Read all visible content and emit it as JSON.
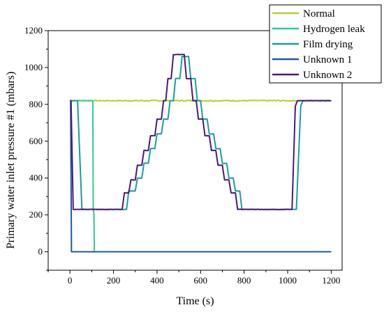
{
  "chart_data": {
    "type": "line",
    "xlabel": "Time (s)",
    "ylabel": "Primary water inlet pressure #1 (mbars)",
    "xlim": [
      -100,
      1250
    ],
    "ylim": [
      -100,
      1200
    ],
    "xticks": [
      0,
      200,
      400,
      600,
      800,
      1000,
      1200
    ],
    "yticks": [
      0,
      200,
      400,
      600,
      800,
      1000,
      1200
    ],
    "xtick_labels": [
      "0",
      "200",
      "400",
      "600",
      "800",
      "1000",
      "1200"
    ],
    "ytick_labels": [
      "0",
      "200",
      "400",
      "600",
      "800",
      "1000",
      "1200"
    ],
    "grid": false,
    "legend_position": "top-right",
    "series": [
      {
        "name": "Normal",
        "color": "#b5d22b",
        "points": [
          [
            0,
            820
          ],
          [
            1200,
            820
          ]
        ],
        "noise": 3
      },
      {
        "name": "Hydrogen leak",
        "color": "#2ecc8e",
        "points": [
          [
            0,
            820
          ],
          [
            105,
            820
          ],
          [
            107,
            230
          ],
          [
            110,
            210
          ],
          [
            112,
            0
          ],
          [
            1200,
            0
          ]
        ],
        "noise": 0
      },
      {
        "name": "Film drying",
        "color": "#1a9e9e",
        "points": [
          [
            0,
            820
          ],
          [
            35,
            820
          ],
          [
            55,
            230
          ],
          [
            260,
            230
          ],
          [
            270,
            330
          ],
          [
            300,
            330
          ],
          [
            310,
            400
          ],
          [
            330,
            400
          ],
          [
            340,
            480
          ],
          [
            360,
            480
          ],
          [
            370,
            560
          ],
          [
            390,
            560
          ],
          [
            400,
            640
          ],
          [
            420,
            640
          ],
          [
            430,
            720
          ],
          [
            450,
            720
          ],
          [
            460,
            820
          ],
          [
            475,
            820
          ],
          [
            485,
            940
          ],
          [
            505,
            940
          ],
          [
            515,
            1060
          ],
          [
            545,
            1060
          ],
          [
            555,
            940
          ],
          [
            575,
            940
          ],
          [
            585,
            820
          ],
          [
            600,
            820
          ],
          [
            610,
            720
          ],
          [
            630,
            720
          ],
          [
            640,
            640
          ],
          [
            660,
            640
          ],
          [
            670,
            560
          ],
          [
            690,
            560
          ],
          [
            700,
            480
          ],
          [
            720,
            480
          ],
          [
            730,
            400
          ],
          [
            750,
            400
          ],
          [
            760,
            330
          ],
          [
            780,
            330
          ],
          [
            790,
            230
          ],
          [
            1040,
            230
          ],
          [
            1060,
            790
          ],
          [
            1070,
            820
          ],
          [
            1200,
            820
          ]
        ],
        "noise": 1
      },
      {
        "name": "Unknown 1",
        "color": "#1f5a9e",
        "points": [
          [
            0,
            820
          ],
          [
            3,
            820
          ],
          [
            7,
            0
          ],
          [
            1200,
            0
          ]
        ],
        "noise": 0
      },
      {
        "name": "Unknown 2",
        "color": "#4b1a7a",
        "points": [
          [
            0,
            820
          ],
          [
            5,
            820
          ],
          [
            15,
            230
          ],
          [
            240,
            230
          ],
          [
            250,
            320
          ],
          [
            270,
            320
          ],
          [
            280,
            390
          ],
          [
            300,
            390
          ],
          [
            310,
            470
          ],
          [
            330,
            470
          ],
          [
            340,
            550
          ],
          [
            360,
            550
          ],
          [
            370,
            630
          ],
          [
            390,
            630
          ],
          [
            400,
            720
          ],
          [
            420,
            720
          ],
          [
            430,
            820
          ],
          [
            440,
            820
          ],
          [
            450,
            940
          ],
          [
            465,
            940
          ],
          [
            475,
            1070
          ],
          [
            525,
            1070
          ],
          [
            535,
            940
          ],
          [
            555,
            940
          ],
          [
            565,
            820
          ],
          [
            580,
            820
          ],
          [
            590,
            720
          ],
          [
            610,
            720
          ],
          [
            620,
            630
          ],
          [
            640,
            630
          ],
          [
            650,
            550
          ],
          [
            670,
            550
          ],
          [
            680,
            470
          ],
          [
            700,
            470
          ],
          [
            710,
            390
          ],
          [
            730,
            390
          ],
          [
            740,
            320
          ],
          [
            760,
            320
          ],
          [
            770,
            230
          ],
          [
            1020,
            230
          ],
          [
            1035,
            790
          ],
          [
            1045,
            820
          ],
          [
            1200,
            820
          ]
        ],
        "noise": 1
      }
    ]
  }
}
